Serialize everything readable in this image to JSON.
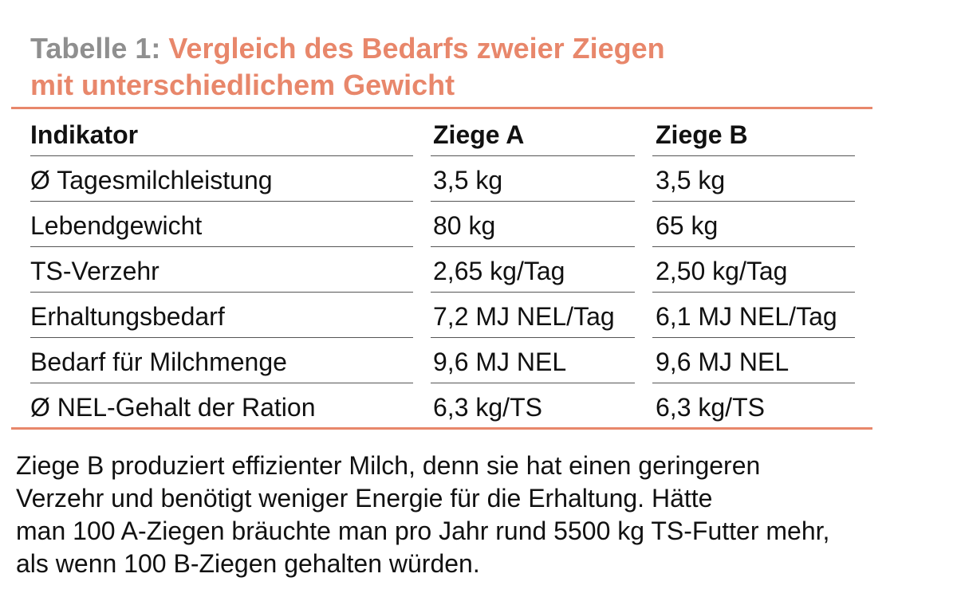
{
  "title": {
    "prefix": "Tabelle 1: ",
    "line1": "Vergleich des Bedarfs zweier Ziegen",
    "line2": "mit unterschiedlichem Gewicht"
  },
  "table": {
    "headers": [
      "Indikator",
      "Ziege A",
      "Ziege B"
    ],
    "rows": [
      [
        "Ø Tagesmilchleistung",
        "3,5 kg",
        "3,5 kg"
      ],
      [
        "Lebendgewicht",
        "80 kg",
        "65 kg"
      ],
      [
        "TS-Verzehr",
        "2,65 kg/Tag",
        "2,50 kg/Tag"
      ],
      [
        "Erhaltungsbedarf",
        "7,2 MJ NEL/Tag",
        "6,1 MJ NEL/Tag"
      ],
      [
        "Bedarf für Milchmenge",
        "9,6 MJ NEL",
        "9,6 MJ NEL"
      ],
      [
        "Ø NEL-Gehalt der Ration",
        "6,3 kg/TS",
        "6,3 kg/TS"
      ]
    ]
  },
  "note": {
    "line1": "Ziege B produziert effizienter Milch, denn sie hat einen geringeren",
    "line2": "Verzehr und benötigt weniger Energie für die Erhaltung. Hätte",
    "line3": "man 100 A-Ziegen bräuchte man pro Jahr rund 5500 kg TS-Futter mehr,",
    "line4": "als wenn 100 B-Ziegen gehalten würden."
  },
  "colors": {
    "accent": "#e8876b",
    "title_prefix": "#8f8f8f",
    "text": "#111111"
  }
}
